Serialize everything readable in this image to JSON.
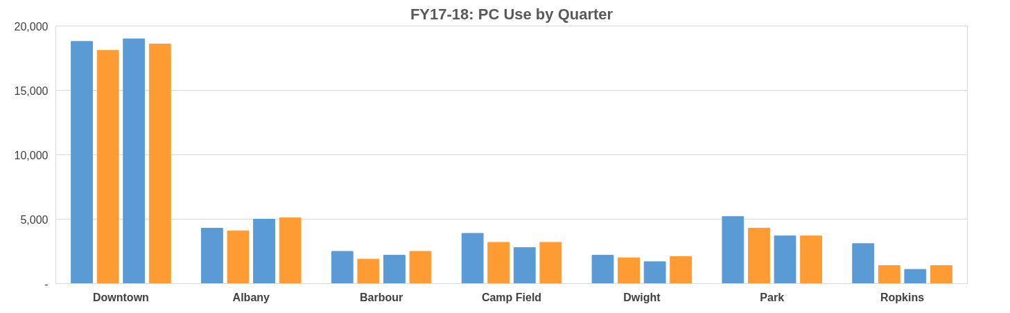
{
  "chart_data": {
    "type": "bar",
    "title": "FY17-18: PC Use by Quarter",
    "categories": [
      "Downtown",
      "Albany",
      "Barbour",
      "Camp Field",
      "Dwight",
      "Park",
      "Ropkins"
    ],
    "series": [
      {
        "color": "#5b9bd5",
        "values": [
          18800,
          4300,
          2500,
          3900,
          2200,
          5200,
          3100
        ]
      },
      {
        "color": "#ff9b33",
        "values": [
          18100,
          4100,
          1900,
          3200,
          2000,
          4300,
          1400
        ]
      },
      {
        "color": "#5b9bd5",
        "values": [
          19000,
          5000,
          2200,
          2800,
          1700,
          3700,
          1100
        ]
      },
      {
        "color": "#ff9b33",
        "values": [
          18600,
          5100,
          2500,
          3200,
          2100,
          3700,
          1400
        ]
      }
    ],
    "ylim": [
      0,
      20000
    ],
    "yticks": [
      {
        "value": 0,
        "label": "-"
      },
      {
        "value": 5000,
        "label": "5,000"
      },
      {
        "value": 10000,
        "label": "10,000"
      },
      {
        "value": 15000,
        "label": "15,000"
      },
      {
        "value": 20000,
        "label": "20,000"
      }
    ],
    "grid": "y"
  }
}
